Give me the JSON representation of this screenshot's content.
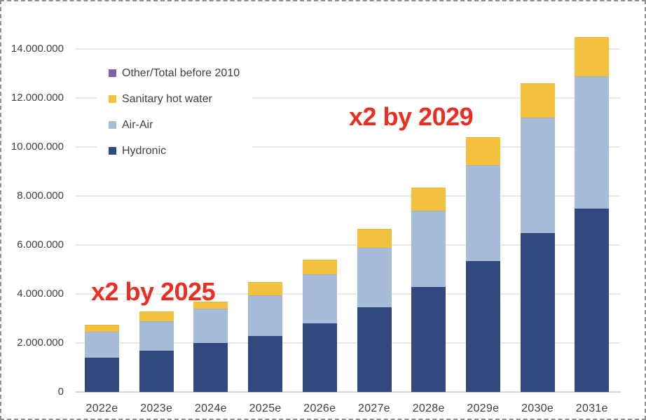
{
  "frame": {
    "background": "#ffffff",
    "border_color": "#8f8f8f"
  },
  "chart_data": {
    "type": "bar",
    "stacked": true,
    "title": "",
    "xlabel": "",
    "ylabel": "",
    "categories": [
      "2022e",
      "2023e",
      "2024e",
      "2025e",
      "2026e",
      "2027e",
      "2028e",
      "2029e",
      "2030e",
      "2031e"
    ],
    "series": [
      {
        "name": "Hydronic",
        "color": "#32497f",
        "values": [
          1400000,
          1700000,
          2000000,
          2300000,
          2800000,
          3450000,
          4300000,
          5350000,
          6500000,
          7500000
        ]
      },
      {
        "name": "Air-Air",
        "color": "#a7bcd9",
        "values": [
          1050000,
          1200000,
          1400000,
          1650000,
          2000000,
          2450000,
          3100000,
          3900000,
          4700000,
          5400000
        ]
      },
      {
        "name": "Sanitary hot water",
        "color": "#f3c13d",
        "values": [
          300000,
          400000,
          300000,
          550000,
          600000,
          750000,
          950000,
          1150000,
          1400000,
          1600000
        ]
      },
      {
        "name": "Other/Total before 2010",
        "color": "#7d61a5",
        "values": [
          0,
          0,
          0,
          0,
          0,
          0,
          0,
          0,
          0,
          0
        ]
      }
    ],
    "totals": [
      2750000,
      3300000,
      3700000,
      4500000,
      5400000,
      6650000,
      8350000,
      10400000,
      12600000,
      14500000
    ],
    "y_axis": {
      "min": 0,
      "max": 14000000,
      "tick_interval": 2000000,
      "ticks": [
        {
          "value": 0,
          "label": "0"
        },
        {
          "value": 2000000,
          "label": "2.000.000"
        },
        {
          "value": 4000000,
          "label": "4.000.000"
        },
        {
          "value": 6000000,
          "label": "6.000.000"
        },
        {
          "value": 8000000,
          "label": "8.000.000"
        },
        {
          "value": 10000000,
          "label": "10.000.000"
        },
        {
          "value": 12000000,
          "label": "12.000.000"
        },
        {
          "value": 14000000,
          "label": "14.000.000"
        }
      ]
    },
    "grid": true,
    "legend": {
      "position": "inside-top-left",
      "items": [
        {
          "label": "Other/Total before 2010",
          "color": "#7d61a5"
        },
        {
          "label": "Sanitary hot water",
          "color": "#f3c13d"
        },
        {
          "label": "Air-Air",
          "color": "#a7bcd9"
        },
        {
          "label": "Hydronic",
          "color": "#32497f"
        }
      ]
    },
    "annotations": [
      {
        "text": "x2 by 2025",
        "color": "#ea2e21"
      },
      {
        "text": "x2 by 2029",
        "color": "#ea2e21"
      }
    ]
  }
}
